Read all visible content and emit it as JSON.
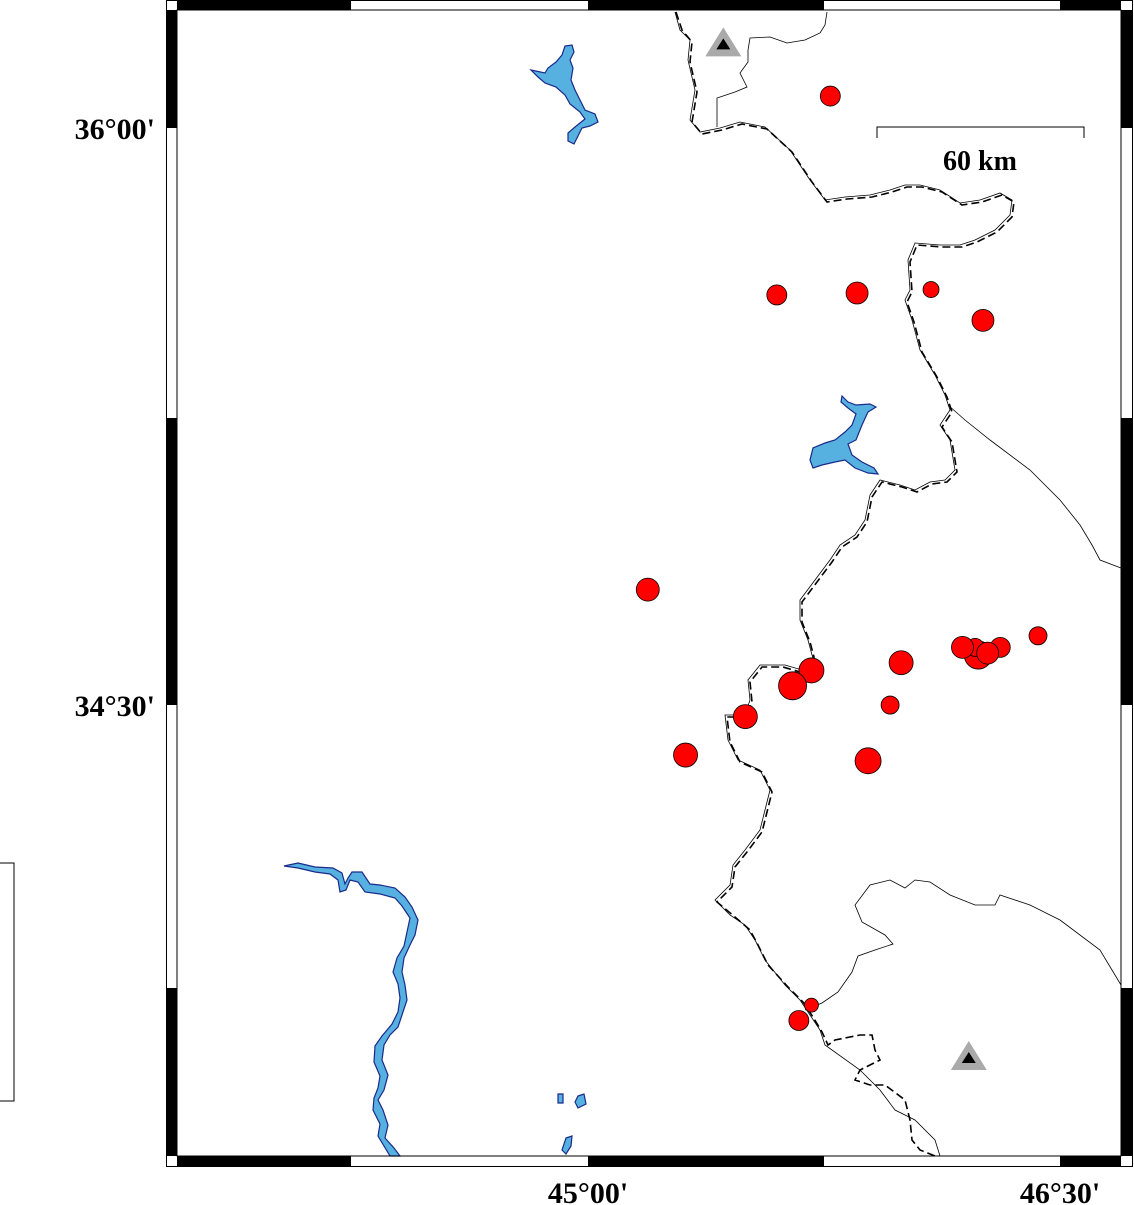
{
  "map": {
    "projection": "Mercator",
    "region": {
      "lon_min": 43.694,
      "lon_max": 46.694,
      "lat_min": 33.328,
      "lat_max": 36.307
    },
    "x_ticks": [
      {
        "value": 45.0,
        "label": "45°00'"
      },
      {
        "value": 46.5,
        "label": "46°30'"
      }
    ],
    "y_ticks": [
      {
        "value": 36.0,
        "label": "36°00'"
      },
      {
        "value": 34.5,
        "label": "34°30'"
      }
    ],
    "scale_bar": {
      "label": "60 km",
      "length_km": 60
    },
    "colors": {
      "event_fill": "#ff0000",
      "water": "#56b0e0",
      "water_outline": "#1a2a8a",
      "station_outer": "#aaaaaa",
      "station_inner": "#000000"
    }
  },
  "events": [
    {
      "lon": 45.77,
      "lat": 36.083,
      "size": 2
    },
    {
      "lon": 45.6,
      "lat": 35.566,
      "size": 2
    },
    {
      "lon": 45.855,
      "lat": 35.571,
      "size": 2.2
    },
    {
      "lon": 46.09,
      "lat": 35.58,
      "size": 1.6
    },
    {
      "lon": 46.255,
      "lat": 35.5,
      "size": 2.2
    },
    {
      "lon": 45.19,
      "lat": 34.8,
      "size": 2.3
    },
    {
      "lon": 45.995,
      "lat": 34.61,
      "size": 2.4
    },
    {
      "lon": 46.43,
      "lat": 34.68,
      "size": 1.8
    },
    {
      "lon": 46.24,
      "lat": 34.63,
      "size": 2.8
    },
    {
      "lon": 46.23,
      "lat": 34.65,
      "size": 1.8
    },
    {
      "lon": 46.19,
      "lat": 34.65,
      "size": 2.2
    },
    {
      "lon": 46.31,
      "lat": 34.65,
      "size": 2
    },
    {
      "lon": 46.27,
      "lat": 34.635,
      "size": 2.2
    },
    {
      "lon": 45.71,
      "lat": 34.59,
      "size": 2.5
    },
    {
      "lon": 45.65,
      "lat": 34.55,
      "size": 2.8
    },
    {
      "lon": 45.5,
      "lat": 34.47,
      "size": 2.4
    },
    {
      "lon": 45.96,
      "lat": 34.5,
      "size": 1.8
    },
    {
      "lon": 45.31,
      "lat": 34.37,
      "size": 2.4
    },
    {
      "lon": 45.89,
      "lat": 34.355,
      "size": 2.6
    },
    {
      "lon": 45.71,
      "lat": 33.72,
      "size": 1.4
    },
    {
      "lon": 45.67,
      "lat": 33.68,
      "size": 2
    }
  ],
  "stations": [
    {
      "lon": 45.43,
      "lat": 36.22
    },
    {
      "lon": 46.21,
      "lat": 33.585
    }
  ]
}
